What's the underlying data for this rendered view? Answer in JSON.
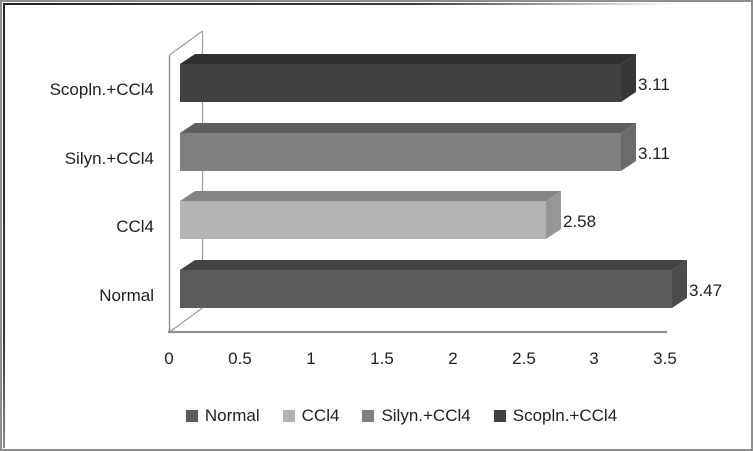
{
  "figure": {
    "background": "#ffffff",
    "border_color": "#8e8e8e"
  },
  "colors": {
    "text": "#1f1f1f",
    "axis_line": "#8c8c8c",
    "floor_line": "#909090"
  },
  "chart_data": {
    "type": "bar",
    "orientation": "horizontal",
    "style": "3d",
    "title": "",
    "categories_top_to_bottom": [
      "Scopln.+CCl4",
      "Silyn.+CCl4",
      "CCl4",
      "Normal"
    ],
    "series": [
      {
        "name": "Normal",
        "value": 3.47,
        "data_label": "3.47",
        "color": "#5b5b5b"
      },
      {
        "name": "CCl4",
        "value": 2.58,
        "data_label": "2.58",
        "color": "#b3b3b3"
      },
      {
        "name": "Silyn.+CCl4",
        "value": 3.11,
        "data_label": "3.11",
        "color": "#7f7f7f"
      },
      {
        "name": "Scopln.+CCl4",
        "value": 3.11,
        "data_label": "3.11",
        "color": "#414141"
      }
    ],
    "x_axis": {
      "min": 0,
      "max": 3.5,
      "ticks": [
        "0",
        "0.5",
        "1",
        "1.5",
        "2",
        "2.5",
        "3",
        "3.5"
      ]
    },
    "grid": false,
    "legend": {
      "position": "bottom",
      "items": [
        "Normal",
        "CCl4",
        "Silyn.+CCl4",
        "Scopln.+CCl4"
      ]
    }
  }
}
